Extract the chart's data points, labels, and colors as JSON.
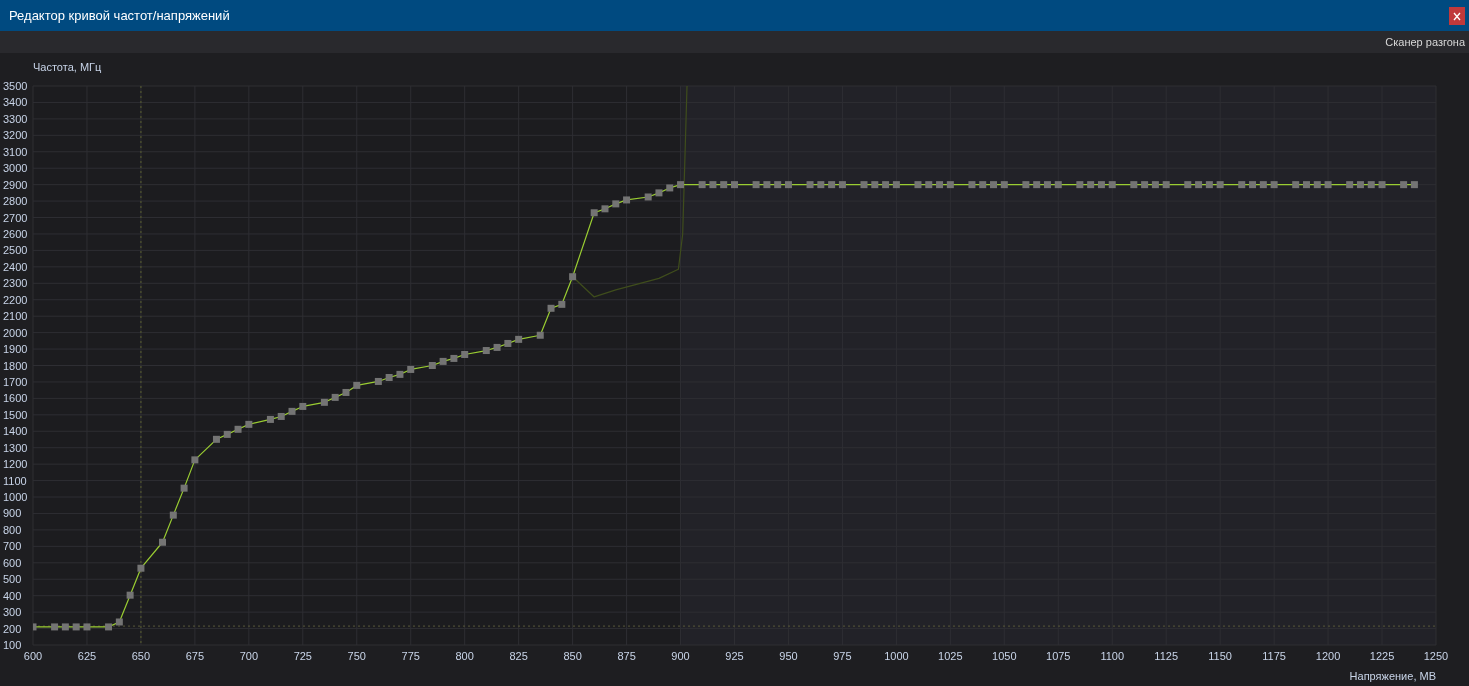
{
  "chart_data": {
    "type": "line",
    "title": "Редактор кривой частот/напряжений",
    "xlabel": "Напряжение, МВ",
    "ylabel": "Частота, МГц",
    "annotations": [
      "Сканер разгона"
    ],
    "xlim": [
      600,
      1250
    ],
    "xticks": [
      600,
      625,
      650,
      675,
      700,
      725,
      750,
      775,
      800,
      825,
      850,
      875,
      900,
      925,
      950,
      975,
      1000,
      1025,
      1050,
      1075,
      1100,
      1125,
      1150,
      1175,
      1200,
      1225,
      1250
    ],
    "ylim": [
      100,
      3500
    ],
    "yticks": [
      100,
      200,
      300,
      400,
      500,
      600,
      700,
      800,
      900,
      1000,
      1100,
      1200,
      1300,
      1400,
      1500,
      1600,
      1700,
      1800,
      1900,
      2000,
      2100,
      2200,
      2300,
      2400,
      2500,
      2600,
      2700,
      2800,
      2900,
      3000,
      3100,
      3200,
      3300,
      3400,
      3500
    ],
    "grid": true,
    "ref_lines": [
      {
        "axis": "y",
        "value": 215,
        "color": "#5a5a3a",
        "line_style": "dotted"
      },
      {
        "axis": "x",
        "value": 650,
        "color": "#5a6030",
        "line_style": "dotted"
      }
    ],
    "bands": [
      {
        "axis": "x",
        "from": 900,
        "to": 1250,
        "color": "#222228"
      }
    ],
    "series": [
      {
        "color": "#3f4d1c",
        "marker": "none",
        "x": [
          850,
          860,
          870,
          880,
          890,
          899,
          901,
          903
        ],
        "values": [
          2340,
          2217,
          2260,
          2295,
          2330,
          2385,
          2600,
          3500
        ]
      },
      {
        "color": "#9acd32",
        "marker": "square",
        "x": [
          600,
          610,
          615,
          620,
          625,
          635,
          640,
          645,
          650,
          660,
          665,
          670,
          675,
          685,
          690,
          695,
          700,
          710,
          715,
          720,
          725,
          735,
          740,
          745,
          750,
          760,
          765,
          770,
          775,
          785,
          790,
          795,
          800,
          810,
          815,
          820,
          825,
          835,
          840,
          845,
          850,
          860,
          865,
          870,
          875,
          885,
          890,
          895,
          900,
          910,
          915,
          920,
          925,
          935,
          940,
          945,
          950,
          960,
          965,
          970,
          975,
          985,
          990,
          995,
          1000,
          1010,
          1015,
          1020,
          1025,
          1035,
          1040,
          1045,
          1050,
          1060,
          1065,
          1070,
          1075,
          1085,
          1090,
          1095,
          1100,
          1110,
          1115,
          1120,
          1125,
          1135,
          1140,
          1145,
          1150,
          1160,
          1165,
          1170,
          1175,
          1185,
          1190,
          1195,
          1200,
          1210,
          1215,
          1220,
          1225,
          1235,
          1240
        ],
        "values": [
          210,
          210,
          210,
          210,
          210,
          210,
          240,
          403,
          567,
          725,
          890,
          1054,
          1226,
          1351,
          1381,
          1412,
          1442,
          1472,
          1490,
          1521,
          1551,
          1576,
          1606,
          1636,
          1679,
          1703,
          1727,
          1746,
          1776,
          1800,
          1825,
          1843,
          1867,
          1891,
          1910,
          1934,
          1959,
          1984,
          2148,
          2172,
          2340,
          2729,
          2753,
          2783,
          2807,
          2825,
          2850,
          2880,
          2900,
          2900,
          2900,
          2900,
          2900,
          2900,
          2900,
          2900,
          2900,
          2900,
          2900,
          2900,
          2900,
          2900,
          2900,
          2900,
          2900,
          2900,
          2900,
          2900,
          2900,
          2900,
          2900,
          2900,
          2900,
          2900,
          2900,
          2900,
          2900,
          2900,
          2900,
          2900,
          2900,
          2900,
          2900,
          2900,
          2900,
          2900,
          2900,
          2900,
          2900,
          2900,
          2900,
          2900,
          2900,
          2900,
          2900,
          2900,
          2900,
          2900,
          2900,
          2900,
          2900,
          2900,
          2900
        ]
      }
    ]
  }
}
